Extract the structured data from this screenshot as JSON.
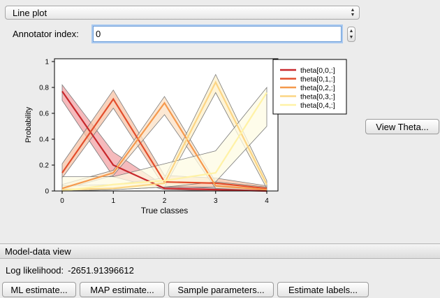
{
  "plot_type": {
    "selected": "Line plot"
  },
  "annotator": {
    "label": "Annotator index:",
    "value": "0"
  },
  "view_theta_label": "View Theta...",
  "model_data": {
    "header": "Model-data view",
    "loglik_label": "Log likelihood:",
    "loglik_value": "-2651.91396612"
  },
  "buttons": {
    "ml": "ML estimate...",
    "map": "MAP estimate...",
    "sample": "Sample parameters...",
    "estimate": "Estimate labels..."
  },
  "chart_data": {
    "type": "line",
    "xlabel": "True classes",
    "ylabel": "Probability",
    "x": [
      0,
      1,
      2,
      3,
      4
    ],
    "xticks": [
      "0",
      "1",
      "2",
      "3",
      "4"
    ],
    "yticks": [
      "0",
      "0.2",
      "0.4",
      "0.6",
      "0.8",
      "1"
    ],
    "xlim": [
      0,
      4
    ],
    "ylim": [
      0,
      1
    ],
    "grid": false,
    "legend_position": "top-right",
    "series": [
      {
        "name": "theta[0,0,:]",
        "color": "#c8282c",
        "fill": "#f2a3a6",
        "values": [
          0.77,
          0.2,
          0.02,
          0.01,
          0.0
        ],
        "upper": [
          0.82,
          0.3,
          0.04,
          0.02,
          0.01
        ],
        "lower": [
          0.7,
          0.11,
          0.01,
          0.0,
          0.0
        ]
      },
      {
        "name": "theta[0,1,:]",
        "color": "#e34e2c",
        "fill": "#f7c3a6",
        "values": [
          0.14,
          0.71,
          0.07,
          0.06,
          0.02
        ],
        "upper": [
          0.21,
          0.78,
          0.12,
          0.1,
          0.04
        ],
        "lower": [
          0.1,
          0.64,
          0.03,
          0.03,
          0.01
        ]
      },
      {
        "name": "theta[0,2,:]",
        "color": "#f5994d",
        "fill": "#fbe0c4",
        "values": [
          0.02,
          0.14,
          0.68,
          0.04,
          0.01
        ],
        "upper": [
          0.05,
          0.16,
          0.73,
          0.07,
          0.03
        ],
        "lower": [
          0.01,
          0.12,
          0.59,
          0.02,
          0.0
        ]
      },
      {
        "name": "theta[0,3,:]",
        "color": "#fcd584",
        "fill": "#fdf0c9",
        "values": [
          0.01,
          0.02,
          0.06,
          0.84,
          0.05
        ],
        "upper": [
          0.04,
          0.05,
          0.1,
          0.9,
          0.08
        ],
        "lower": [
          0.0,
          0.01,
          0.03,
          0.76,
          0.02
        ]
      },
      {
        "name": "theta[0,4,:]",
        "color": "#fff2a6",
        "fill": "#fefbe3",
        "values": [
          0.0,
          0.05,
          0.08,
          0.14,
          0.76
        ],
        "upper": [
          0.11,
          0.11,
          0.21,
          0.31,
          0.8
        ],
        "lower": [
          0.0,
          0.01,
          0.03,
          0.07,
          0.5
        ]
      }
    ]
  }
}
